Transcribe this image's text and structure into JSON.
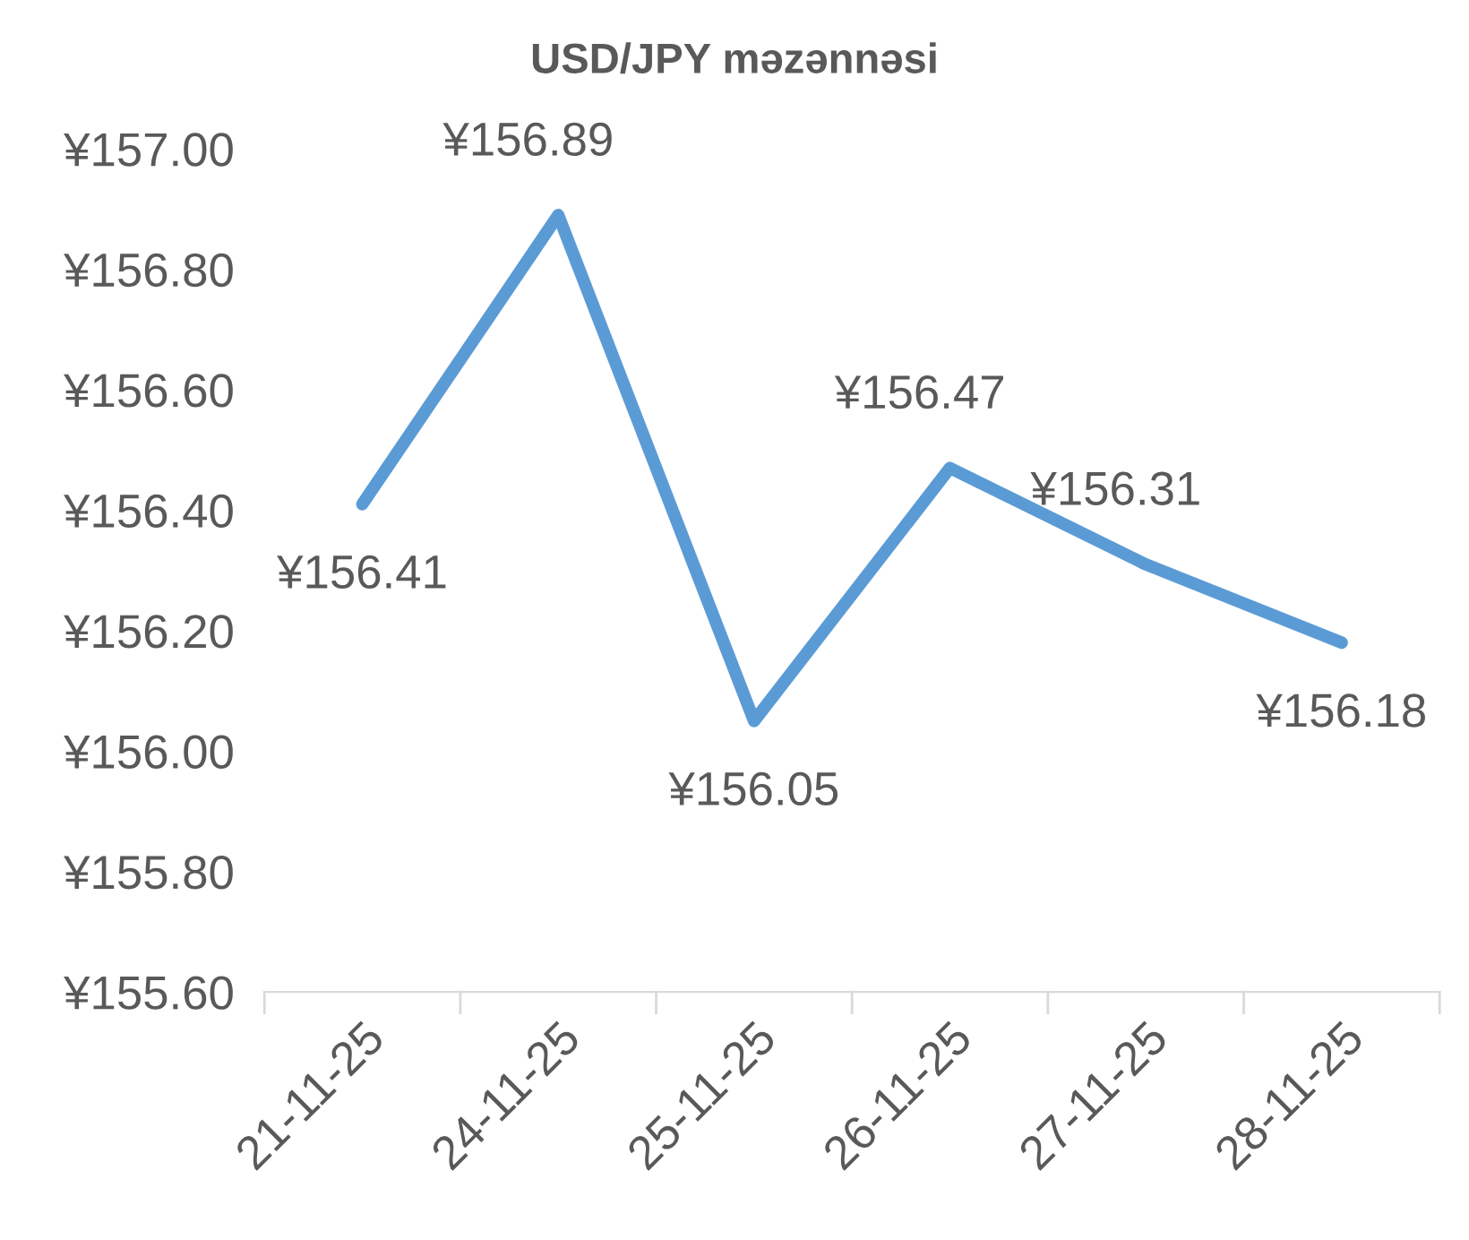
{
  "chart_data": {
    "type": "line",
    "title": "USD/JPY məzənnəsi",
    "categories": [
      "21-11-25",
      "24-11-25",
      "25-11-25",
      "26-11-25",
      "27-11-25",
      "28-11-25"
    ],
    "series": [
      {
        "color": "#5b9bd5",
        "values": [
          156.41,
          156.89,
          156.05,
          156.47,
          156.31,
          156.18
        ]
      }
    ],
    "value_labels": [
      "¥156.41",
      "¥156.89",
      "¥156.05",
      "¥156.47",
      "¥156.31",
      "¥156.18"
    ],
    "ylim": [
      155.6,
      157.0
    ],
    "yticks": [
      {
        "value": 155.6,
        "label": "¥155.60"
      },
      {
        "value": 155.8,
        "label": "¥155.80"
      },
      {
        "value": 156.0,
        "label": "¥156.00"
      },
      {
        "value": 156.2,
        "label": "¥156.20"
      },
      {
        "value": 156.4,
        "label": "¥156.40"
      },
      {
        "value": 156.6,
        "label": "¥156.60"
      },
      {
        "value": 156.8,
        "label": "¥156.80"
      },
      {
        "value": 157.0,
        "label": "¥157.00"
      }
    ],
    "grid": false,
    "legend": false,
    "marker": "none",
    "line_style": "solid"
  }
}
